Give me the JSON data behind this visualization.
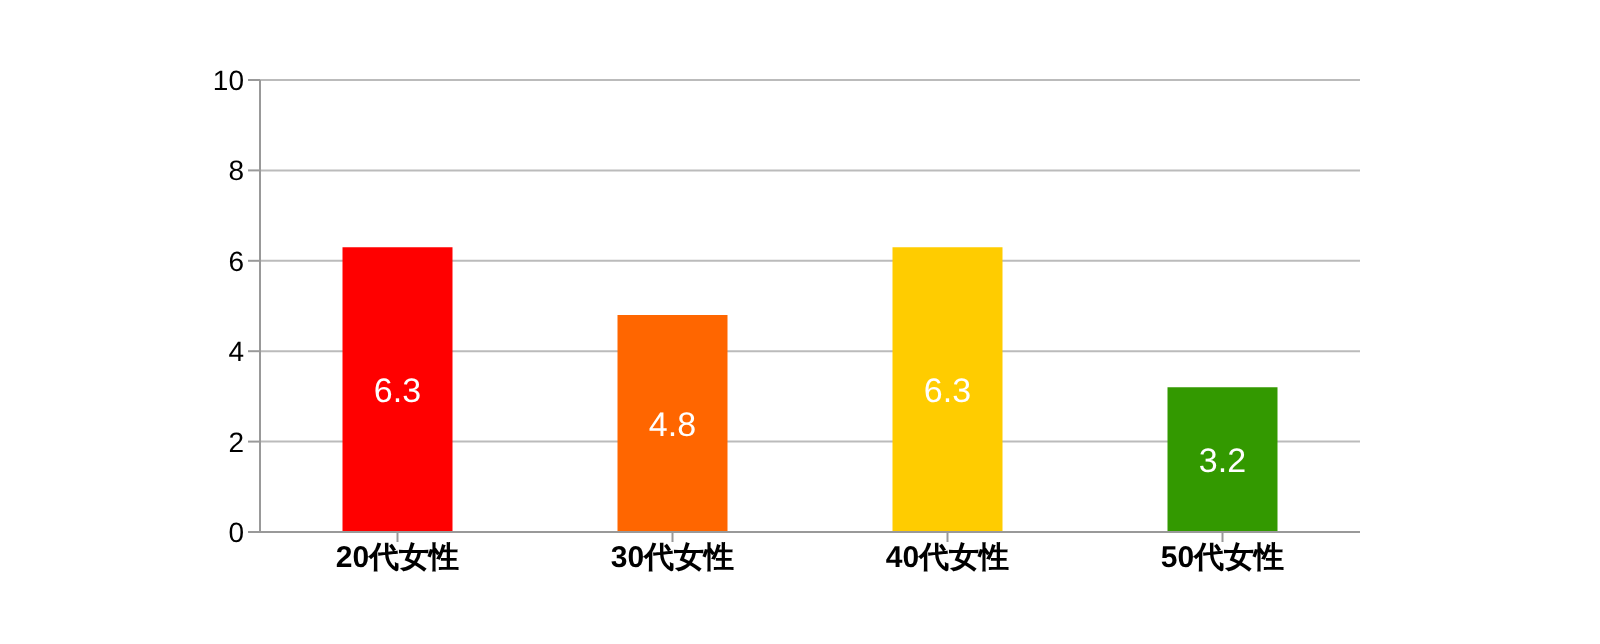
{
  "chart_data": {
    "type": "bar",
    "categories": [
      "20代女性",
      "30代女性",
      "40代女性",
      "50代女性"
    ],
    "values": [
      6.3,
      4.8,
      6.3,
      3.2
    ],
    "colors": [
      "#ff0000",
      "#ff6600",
      "#ffcc00",
      "#339900"
    ],
    "ylim": [
      0,
      10
    ],
    "yticks": [
      0,
      2,
      4,
      6,
      8,
      10
    ],
    "grid": "y",
    "data_labels": true
  }
}
